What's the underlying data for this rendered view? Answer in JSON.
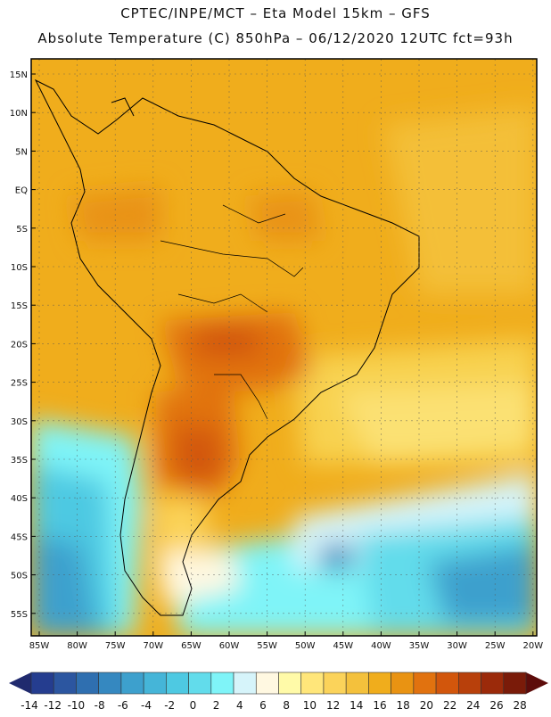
{
  "header": {
    "line1": "CPTEC/INPE/MCT –  Eta Model 15km – GFS",
    "line2": "Absolute Temperature (C) 850hPa – 06/12/2020 12UTC fct=93h"
  },
  "axes": {
    "lat_labels": [
      "15N",
      "10N",
      "5N",
      "EQ",
      "5S",
      "10S",
      "15S",
      "20S",
      "25S",
      "30S",
      "35S",
      "40S",
      "45S",
      "50S",
      "55S"
    ],
    "lon_labels": [
      "85W",
      "80W",
      "75W",
      "70W",
      "65W",
      "60W",
      "55W",
      "50W",
      "45W",
      "40W",
      "35W",
      "30W",
      "25W",
      "20W"
    ]
  },
  "colorbar": {
    "labels": [
      "-14",
      "-12",
      "-10",
      "-8",
      "-6",
      "-4",
      "-2",
      "0",
      "2",
      "4",
      "6",
      "8",
      "10",
      "12",
      "14",
      "16",
      "18",
      "20",
      "22",
      "24",
      "26",
      "28"
    ],
    "colors": [
      "#253d8f",
      "#2c56a0",
      "#2f6fb0",
      "#3588c0",
      "#3da0cd",
      "#45b5d8",
      "#4ec9e2",
      "#62dceb",
      "#7ff4f8",
      "#d6f4fa",
      "#fff8e1",
      "#fffaa8",
      "#ffe67a",
      "#fbd35a",
      "#f4c13c",
      "#f0ad1c",
      "#e99312",
      "#e1720f",
      "#d2560c",
      "#b8400b",
      "#9b2a0a",
      "#7a1b09"
    ]
  }
}
